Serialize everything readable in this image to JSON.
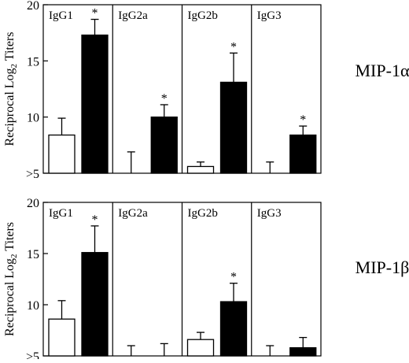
{
  "chart_data": [
    {
      "type": "bar",
      "row_label": "MIP-1α",
      "ylabel": {
        "prefix": "Reciprocal Log",
        "subscript": "2",
        "suffix": " Titers"
      },
      "ylim": [
        5,
        20
      ],
      "yticks": [
        {
          "value": 20,
          "label": "20"
        },
        {
          "value": 15,
          "label": "15"
        },
        {
          "value": 10,
          "label": "10"
        },
        {
          "value": 5,
          "label": ">5"
        }
      ],
      "grid": false,
      "legend": "none",
      "colors": {
        "open": "#ffffff",
        "filled": "#000000",
        "stroke": "#000000"
      },
      "panels": [
        {
          "name": "IgG1",
          "bars": [
            {
              "fill": "open",
              "value": 8.4,
              "error": 9.9,
              "star": ""
            },
            {
              "fill": "filled",
              "value": 17.3,
              "error": 18.7,
              "star": "*"
            }
          ]
        },
        {
          "name": "IgG2a",
          "bars": [
            {
              "fill": "open",
              "value": 5.0,
              "error": 6.9,
              "star": ""
            },
            {
              "fill": "filled",
              "value": 10.0,
              "error": 11.1,
              "star": "*"
            }
          ]
        },
        {
          "name": "IgG2b",
          "bars": [
            {
              "fill": "open",
              "value": 5.6,
              "error": 6.0,
              "star": ""
            },
            {
              "fill": "filled",
              "value": 13.1,
              "error": 15.7,
              "star": "*"
            }
          ]
        },
        {
          "name": "IgG3",
          "bars": [
            {
              "fill": "open",
              "value": 5.0,
              "error": 6.0,
              "star": ""
            },
            {
              "fill": "filled",
              "value": 8.4,
              "error": 9.2,
              "star": "*"
            }
          ]
        }
      ]
    },
    {
      "type": "bar",
      "row_label": "MIP-1β",
      "ylabel": {
        "prefix": "Reciprocal Log",
        "subscript": "2",
        "suffix": " Titers"
      },
      "ylim": [
        5,
        20
      ],
      "yticks": [
        {
          "value": 20,
          "label": "20"
        },
        {
          "value": 15,
          "label": "15"
        },
        {
          "value": 10,
          "label": "10"
        },
        {
          "value": 5,
          "label": ">5"
        }
      ],
      "grid": false,
      "legend": "none",
      "colors": {
        "open": "#ffffff",
        "filled": "#000000",
        "stroke": "#000000"
      },
      "panels": [
        {
          "name": "IgG1",
          "bars": [
            {
              "fill": "open",
              "value": 8.6,
              "error": 10.4,
              "star": ""
            },
            {
              "fill": "filled",
              "value": 15.1,
              "error": 17.7,
              "star": "*"
            }
          ]
        },
        {
          "name": "IgG2a",
          "bars": [
            {
              "fill": "open",
              "value": 5.0,
              "error": 6.0,
              "star": ""
            },
            {
              "fill": "filled",
              "value": 5.0,
              "error": 6.2,
              "star": ""
            }
          ]
        },
        {
          "name": "IgG2b",
          "bars": [
            {
              "fill": "open",
              "value": 6.6,
              "error": 7.3,
              "star": ""
            },
            {
              "fill": "filled",
              "value": 10.3,
              "error": 12.1,
              "star": "*"
            }
          ]
        },
        {
          "name": "IgG3",
          "bars": [
            {
              "fill": "open",
              "value": 5.0,
              "error": 6.0,
              "star": ""
            },
            {
              "fill": "filled",
              "value": 5.8,
              "error": 6.8,
              "star": ""
            }
          ]
        }
      ]
    }
  ]
}
